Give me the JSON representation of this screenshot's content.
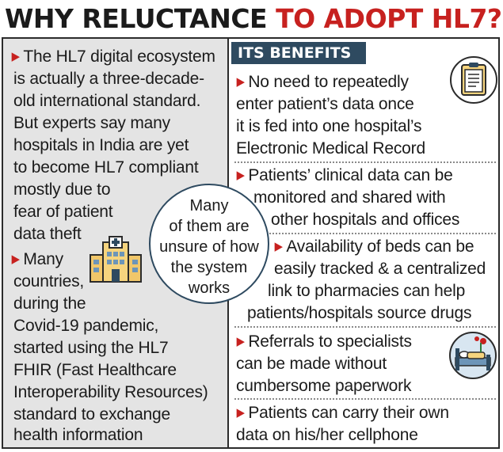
{
  "headline": {
    "part1": "WHY RELUCTANCE ",
    "part2": "TO ADOPT HL7?"
  },
  "colors": {
    "headline_black": "#1b1b1b",
    "headline_red": "#c7211f",
    "left_panel_bg": "#e4e4e4",
    "header_bg": "#2e4a60",
    "bullet_arrow": "#c7211f"
  },
  "left": {
    "para1": [
      "The HL7 digital ecosystem",
      "is actually a three-decade-",
      "old international standard.",
      "But experts say many",
      "hospitals in India are yet",
      "to become HL7 compliant",
      "mostly due to",
      "fear of patient",
      "data theft"
    ],
    "para2": [
      "Many",
      "countries,",
      "during the",
      "Covid-19 pandemic,",
      "started using the HL7",
      "FHIR (Fast Healthcare",
      "Interoperability Resources)",
      "standard to exchange",
      "health information"
    ]
  },
  "callout": {
    "lines": [
      "Many",
      "of them are",
      "unsure of how",
      "the system",
      "works"
    ]
  },
  "benefits": {
    "header": "ITS BENEFITS",
    "items": [
      [
        "No need to repeatedly",
        "enter patient’s data once",
        "it is fed into one hospital’s",
        "Electronic Medical Record"
      ],
      [
        "Patients’ clinical data can be",
        "monitored and shared with",
        "other hospitals and offices"
      ],
      [
        "Availability of beds can be",
        "easily tracked & a centralized",
        "link to pharmacies can help",
        "patients/hospitals source drugs"
      ],
      [
        "Referrals to specialists",
        "can be made without",
        "cumbersome paperwork"
      ],
      [
        "Patients can carry their own",
        "data on his/her cellphone"
      ]
    ]
  },
  "icons": {
    "document": "clipboard-document-icon",
    "hospital": "hospital-building-icon",
    "bed": "hospital-bed-icon"
  }
}
